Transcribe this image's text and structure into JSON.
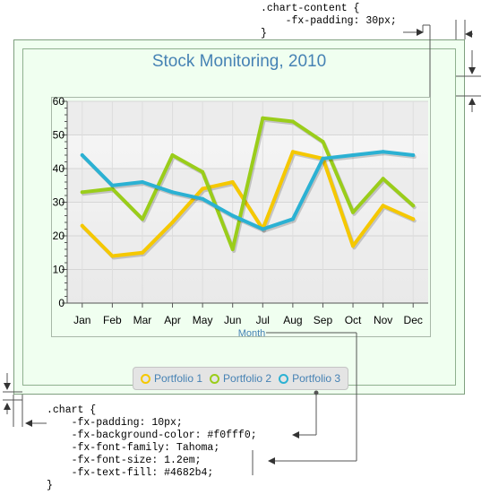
{
  "annotations": {
    "top_code": [
      ".chart-content {",
      "    -fx-padding: 30px;",
      "}"
    ],
    "bottom_code": [
      ".chart {",
      "    -fx-padding: 10px;",
      "    -fx-background-color: #f0fff0;",
      "    -fx-font-family: Tahoma;",
      "    -fx-font-size: 1.2em;",
      "    -fx-text-fill: #4682b4;",
      "}"
    ]
  },
  "chart_data": {
    "type": "line",
    "title": "Stock Monitoring, 2010",
    "xlabel": "Month",
    "ylabel": "",
    "categories": [
      "Jan",
      "Feb",
      "Mar",
      "Apr",
      "May",
      "Jun",
      "Jul",
      "Aug",
      "Sep",
      "Oct",
      "Nov",
      "Dec"
    ],
    "ylim": [
      0,
      60
    ],
    "yticks": [
      "0",
      "10",
      "20",
      "30",
      "40",
      "50",
      "60"
    ],
    "grid": true,
    "legend_position": "bottom",
    "series": [
      {
        "name": "Portfolio 1",
        "color": "#f5c800",
        "values": [
          23,
          14,
          15,
          24,
          34,
          36,
          22,
          45,
          43,
          17,
          29,
          25
        ]
      },
      {
        "name": "Portfolio 2",
        "color": "#9acd1a",
        "values": [
          33,
          34,
          25,
          44,
          39,
          16,
          55,
          54,
          48,
          27,
          37,
          29
        ]
      },
      {
        "name": "Portfolio 3",
        "color": "#2bb1d3",
        "values": [
          44,
          35,
          36,
          33,
          31,
          26,
          22,
          25,
          43,
          44,
          45,
          44
        ]
      }
    ]
  }
}
